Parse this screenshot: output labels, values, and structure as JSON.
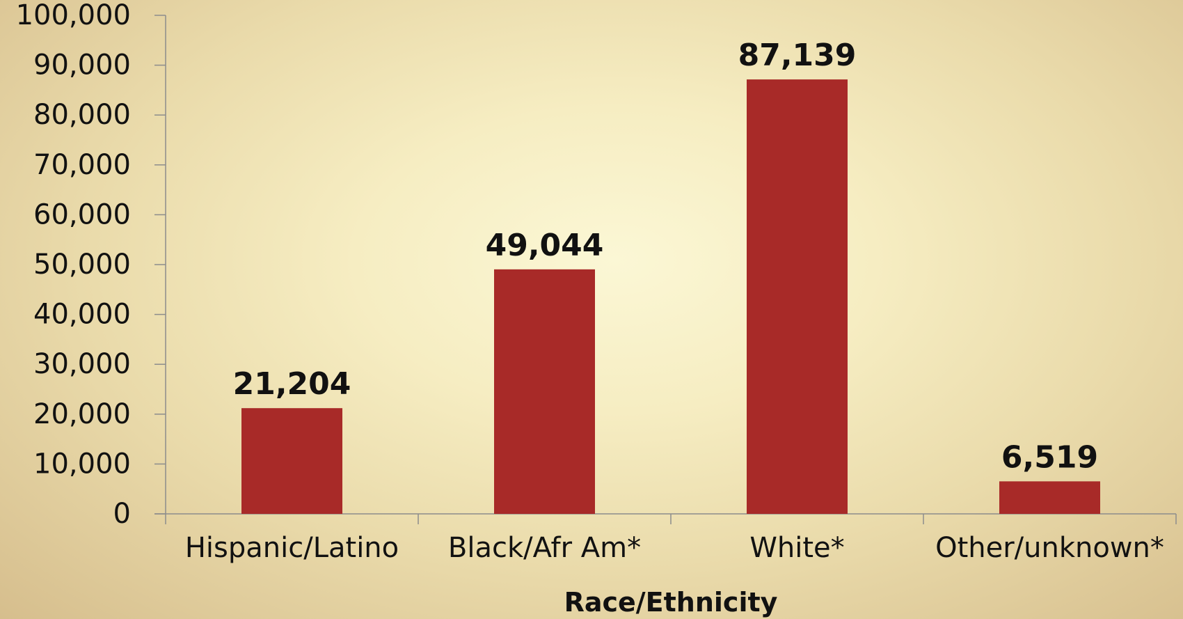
{
  "chart_data": {
    "type": "bar",
    "categories": [
      "Hispanic/Latino",
      "Black/Afr Am*",
      "White*",
      "Other/unknown*"
    ],
    "values": [
      21204,
      49044,
      87139,
      6519
    ],
    "value_labels": [
      "21,204",
      "49,044",
      "87,139",
      "6,519"
    ],
    "title": "",
    "xlabel": "Race/Ethnicity",
    "ylabel": "",
    "ylim": [
      0,
      100000
    ],
    "yticks": [
      0,
      10000,
      20000,
      30000,
      40000,
      50000,
      60000,
      70000,
      80000,
      90000,
      100000
    ],
    "ytick_labels": [
      "0",
      "10,000",
      "20,000",
      "30,000",
      "40,000",
      "50,000",
      "60,000",
      "70,000",
      "80,000",
      "90,000",
      "100,000"
    ],
    "grid": false,
    "legend": "none",
    "colors": {
      "bar": "#a82a28",
      "axis": "#8c8c8c",
      "text": "#111111"
    }
  }
}
